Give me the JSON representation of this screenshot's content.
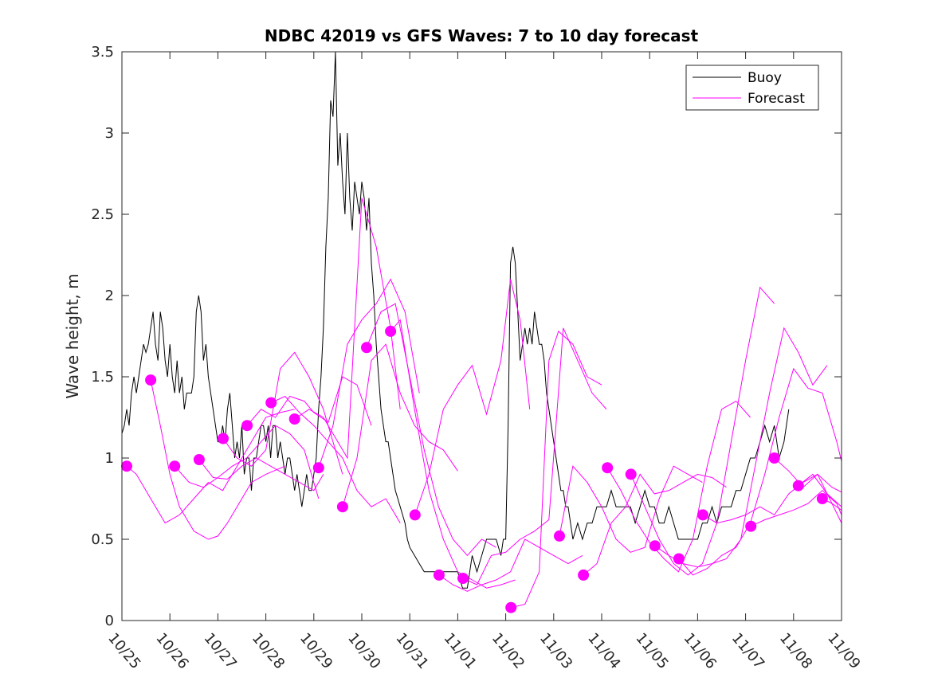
{
  "chart_data": {
    "type": "line",
    "title": "NDBC 42019 vs GFS Waves: 7 to 10 day forecast",
    "xlabel": "",
    "ylabel": "Wave height, m",
    "xlim_days": [
      0,
      15
    ],
    "ylim": [
      0,
      3.5
    ],
    "x_tick_labels": [
      "10/25",
      "10/26",
      "10/27",
      "10/28",
      "10/29",
      "10/30",
      "10/31",
      "11/01",
      "11/02",
      "11/03",
      "11/04",
      "11/05",
      "11/06",
      "11/07",
      "11/08",
      "11/09"
    ],
    "y_ticks": [
      0,
      0.5,
      1,
      1.5,
      2,
      2.5,
      3,
      3.5
    ],
    "y_tick_labels": [
      "0",
      "0.5",
      "1",
      "1.5",
      "2",
      "2.5",
      "3",
      "3.5"
    ],
    "grid": false,
    "legend": {
      "position": "top-right",
      "entries": [
        {
          "label": "Buoy",
          "color": "#000000"
        },
        {
          "label": "Forecast",
          "color": "#ff00ff"
        }
      ]
    },
    "colors": {
      "buoy": "#000000",
      "forecast": "#ff00ff",
      "axis": "#262626"
    },
    "buoy": {
      "name": "Buoy",
      "x_days": [
        0.0,
        0.05,
        0.1,
        0.15,
        0.2,
        0.25,
        0.3,
        0.35,
        0.4,
        0.45,
        0.5,
        0.55,
        0.6,
        0.65,
        0.7,
        0.75,
        0.8,
        0.85,
        0.9,
        0.95,
        1.0,
        1.05,
        1.1,
        1.15,
        1.2,
        1.25,
        1.3,
        1.35,
        1.4,
        1.45,
        1.5,
        1.55,
        1.6,
        1.65,
        1.7,
        1.75,
        1.8,
        1.85,
        1.9,
        1.95,
        2.0,
        2.05,
        2.1,
        2.15,
        2.2,
        2.25,
        2.3,
        2.35,
        2.4,
        2.45,
        2.5,
        2.55,
        2.6,
        2.65,
        2.7,
        2.75,
        2.8,
        2.85,
        2.9,
        2.95,
        3.0,
        3.05,
        3.1,
        3.15,
        3.2,
        3.25,
        3.3,
        3.35,
        3.4,
        3.45,
        3.5,
        3.55,
        3.6,
        3.65,
        3.7,
        3.75,
        3.8,
        3.85,
        3.9,
        3.95,
        4.0,
        4.05,
        4.1,
        4.15,
        4.2,
        4.25,
        4.3,
        4.35,
        4.4,
        4.45,
        4.5,
        4.55,
        4.6,
        4.65,
        4.7,
        4.75,
        4.8,
        4.85,
        4.9,
        4.95,
        5.0,
        5.05,
        5.1,
        5.15,
        5.2,
        5.25,
        5.3,
        5.35,
        5.4,
        5.45,
        5.5,
        5.55,
        5.6,
        5.65,
        5.7,
        5.75,
        5.8,
        5.85,
        5.9,
        5.95,
        6.0,
        6.1,
        6.2,
        6.3,
        6.4,
        6.5,
        6.6,
        6.7,
        6.8,
        6.9,
        7.0,
        7.1,
        7.2,
        7.3,
        7.4,
        7.5,
        7.6,
        7.7,
        7.8,
        7.9,
        7.95,
        8.0,
        8.05,
        8.1,
        8.15,
        8.2,
        8.25,
        8.3,
        8.35,
        8.4,
        8.45,
        8.5,
        8.55,
        8.6,
        8.65,
        8.7,
        8.75,
        8.8,
        8.85,
        8.9,
        8.95,
        9.0,
        9.05,
        9.1,
        9.15,
        9.2,
        9.25,
        9.3,
        9.35,
        9.4,
        9.5,
        9.6,
        9.7,
        9.8,
        9.9,
        10.0,
        10.1,
        10.2,
        10.3,
        10.4,
        10.5,
        10.6,
        10.7,
        10.8,
        10.9,
        11.0,
        11.1,
        11.2,
        11.3,
        11.4,
        11.5,
        11.6,
        11.7,
        11.8,
        11.9,
        12.0,
        12.1,
        12.2,
        12.3,
        12.4,
        12.5,
        12.6,
        12.7,
        12.8,
        12.9,
        13.0,
        13.1,
        13.2,
        13.3,
        13.4,
        13.5,
        13.6,
        13.7,
        13.8,
        13.9,
        14.0,
        14.1,
        14.2,
        14.3
      ],
      "values": [
        1.15,
        1.2,
        1.3,
        1.2,
        1.4,
        1.5,
        1.4,
        1.5,
        1.6,
        1.7,
        1.65,
        1.7,
        1.8,
        1.9,
        1.7,
        1.6,
        1.9,
        1.8,
        1.6,
        1.5,
        1.7,
        1.5,
        1.4,
        1.6,
        1.4,
        1.5,
        1.3,
        1.4,
        1.4,
        1.4,
        1.5,
        1.9,
        2.0,
        1.9,
        1.6,
        1.7,
        1.5,
        1.4,
        1.3,
        1.2,
        1.1,
        1.1,
        1.2,
        1.1,
        1.3,
        1.4,
        1.2,
        1.0,
        1.1,
        1.0,
        1.2,
        0.9,
        1.0,
        1.0,
        0.8,
        1.0,
        1.0,
        1.1,
        1.2,
        1.2,
        1.1,
        1.2,
        1.0,
        1.2,
        1.2,
        1.0,
        1.1,
        1.0,
        0.9,
        1.0,
        1.0,
        0.9,
        0.8,
        0.9,
        0.8,
        0.7,
        0.8,
        0.9,
        0.8,
        0.8,
        0.9,
        1.0,
        1.3,
        1.5,
        1.8,
        2.3,
        2.6,
        3.2,
        3.1,
        3.5,
        2.8,
        3.0,
        2.7,
        2.5,
        3.0,
        2.6,
        2.4,
        2.7,
        2.6,
        2.5,
        2.7,
        2.6,
        2.4,
        2.6,
        2.2,
        2.0,
        1.7,
        1.5,
        1.3,
        1.2,
        1.1,
        1.1,
        1.0,
        0.9,
        0.8,
        0.75,
        0.7,
        0.65,
        0.6,
        0.5,
        0.45,
        0.4,
        0.35,
        0.3,
        0.3,
        0.3,
        0.3,
        0.3,
        0.3,
        0.3,
        0.3,
        0.2,
        0.2,
        0.4,
        0.3,
        0.4,
        0.5,
        0.5,
        0.5,
        0.4,
        0.5,
        0.5,
        1.2,
        2.2,
        2.3,
        2.2,
        1.9,
        1.6,
        1.7,
        1.8,
        1.7,
        1.8,
        1.7,
        1.9,
        1.8,
        1.7,
        1.7,
        1.6,
        1.4,
        1.3,
        1.2,
        1.1,
        1.0,
        0.9,
        0.8,
        0.8,
        0.7,
        0.7,
        0.6,
        0.5,
        0.6,
        0.5,
        0.6,
        0.6,
        0.7,
        0.7,
        0.7,
        0.8,
        0.7,
        0.7,
        0.7,
        0.7,
        0.6,
        0.7,
        0.8,
        0.7,
        0.7,
        0.6,
        0.6,
        0.7,
        0.6,
        0.5,
        0.5,
        0.5,
        0.5,
        0.5,
        0.6,
        0.6,
        0.7,
        0.6,
        0.7,
        0.7,
        0.7,
        0.8,
        0.8,
        0.9,
        1.0,
        1.0,
        1.1,
        1.2,
        1.1,
        1.2,
        1.0,
        1.1,
        1.3
      ]
    },
    "forecast_points": {
      "name": "Forecast",
      "x_days": [
        0.1,
        0.6,
        1.1,
        1.61,
        2.11,
        2.61,
        3.11,
        3.6,
        4.1,
        4.6,
        5.1,
        5.6,
        6.11,
        6.61,
        7.11,
        8.11,
        9.12,
        9.62,
        10.12,
        10.61,
        11.11,
        11.61,
        12.11,
        13.11,
        13.6,
        14.1,
        14.6
      ],
      "values": [
        0.95,
        1.48,
        0.95,
        0.99,
        1.12,
        1.2,
        1.34,
        1.24,
        0.94,
        0.7,
        1.68,
        1.78,
        0.65,
        0.28,
        0.26,
        0.08,
        0.52,
        0.28,
        0.94,
        0.9,
        0.46,
        0.38,
        0.65,
        0.58,
        1.0,
        0.83,
        0.75
      ]
    },
    "forecast_series": [
      {
        "x_days": [
          0.1,
          0.3,
          0.6,
          0.9,
          1.2,
          1.5,
          1.8,
          2.1,
          2.4,
          2.7,
          3.0,
          3.3,
          3.6
        ],
        "values": [
          0.95,
          0.9,
          0.75,
          0.6,
          0.65,
          0.75,
          0.85,
          0.8,
          0.95,
          1.1,
          1.25,
          1.28,
          1.3
        ]
      },
      {
        "x_days": [
          0.6,
          0.8,
          1.0,
          1.2,
          1.5,
          1.8,
          2.0,
          2.2,
          2.5,
          2.7,
          3.0,
          3.4
        ],
        "values": [
          1.48,
          1.2,
          0.9,
          0.7,
          0.55,
          0.5,
          0.52,
          0.6,
          0.75,
          0.85,
          0.9,
          0.95
        ]
      },
      {
        "x_days": [
          1.1,
          1.4,
          1.7,
          2.0,
          2.3,
          2.6,
          2.9,
          3.2,
          3.5,
          3.8,
          4.1
        ],
        "values": [
          0.95,
          0.85,
          0.82,
          0.88,
          0.95,
          1.0,
          1.1,
          1.2,
          1.15,
          1.05,
          0.75
        ]
      },
      {
        "x_days": [
          1.61,
          1.9,
          2.2,
          2.5,
          2.8,
          3.1,
          3.4,
          3.7,
          4.0,
          4.2
        ],
        "values": [
          0.99,
          0.88,
          0.87,
          0.95,
          1.0,
          0.95,
          0.9,
          0.85,
          0.8,
          0.9
        ]
      },
      {
        "x_days": [
          2.11,
          2.4,
          2.7,
          3.0,
          3.3,
          3.6,
          3.9,
          4.2,
          4.5,
          4.6
        ],
        "values": [
          1.12,
          1.0,
          0.95,
          1.05,
          1.55,
          1.65,
          1.5,
          1.3,
          1.0,
          0.9
        ]
      },
      {
        "x_days": [
          2.61,
          2.9,
          3.2,
          3.5,
          3.8,
          4.0,
          4.3,
          4.6,
          4.9,
          5.2
        ],
        "values": [
          1.2,
          1.3,
          1.25,
          1.38,
          1.35,
          1.28,
          1.22,
          1.5,
          1.45,
          1.2
        ]
      },
      {
        "x_days": [
          3.11,
          3.4,
          3.7,
          4.0,
          4.3,
          4.6,
          4.9,
          5.2,
          5.5,
          5.8
        ],
        "values": [
          1.34,
          1.38,
          1.28,
          1.2,
          1.1,
          1.0,
          0.8,
          0.7,
          0.75,
          0.6
        ]
      },
      {
        "x_days": [
          3.6,
          3.9,
          4.2,
          4.5,
          4.7,
          5.0,
          5.3,
          5.6,
          5.8
        ],
        "values": [
          1.24,
          1.3,
          1.25,
          1.1,
          1.0,
          2.6,
          2.3,
          1.8,
          1.3
        ]
      },
      {
        "x_days": [
          4.1,
          4.4,
          4.7,
          5.0,
          5.3,
          5.6,
          5.9,
          6.2
        ],
        "values": [
          0.94,
          1.2,
          1.7,
          1.85,
          1.95,
          2.1,
          1.9,
          1.4
        ]
      },
      {
        "x_days": [
          4.6,
          4.9,
          5.2,
          5.5,
          5.8,
          6.1,
          6.4,
          6.7,
          7.0
        ],
        "values": [
          0.7,
          1.0,
          1.6,
          1.7,
          1.4,
          1.2,
          1.1,
          1.05,
          0.92
        ]
      },
      {
        "x_days": [
          5.1,
          5.4,
          5.7,
          6.0,
          6.3,
          6.6,
          6.9,
          7.2,
          7.5,
          7.8
        ],
        "values": [
          1.68,
          1.9,
          1.95,
          1.5,
          1.05,
          0.7,
          0.5,
          0.4,
          0.5,
          0.45
        ]
      },
      {
        "x_days": [
          5.6,
          5.8,
          6.1,
          6.4,
          6.7,
          7.0,
          7.3,
          7.6,
          7.9,
          8.2
        ],
        "values": [
          1.78,
          1.85,
          1.3,
          0.8,
          0.5,
          0.3,
          0.25,
          0.2,
          0.22,
          0.25
        ]
      },
      {
        "x_days": [
          6.11,
          6.4,
          6.7,
          7.0,
          7.3,
          7.6,
          7.9,
          8.1,
          8.3,
          8.5
        ],
        "values": [
          0.65,
          0.9,
          1.3,
          1.45,
          1.57,
          1.27,
          1.6,
          2.1,
          1.85,
          1.3
        ]
      },
      {
        "x_days": [
          6.61,
          6.9,
          7.2,
          7.5,
          7.8,
          8.1,
          8.4,
          8.7,
          9.0,
          9.3,
          9.6
        ],
        "values": [
          0.28,
          0.22,
          0.18,
          0.22,
          0.25,
          0.3,
          0.5,
          0.45,
          0.4,
          0.35,
          0.4
        ]
      },
      {
        "x_days": [
          7.11,
          7.4,
          7.7,
          8.0,
          8.3,
          8.6,
          8.9,
          9.2,
          9.5,
          9.8,
          10.1
        ],
        "values": [
          0.26,
          0.22,
          0.4,
          0.42,
          0.5,
          0.55,
          0.62,
          1.8,
          1.6,
          1.4,
          1.3
        ]
      },
      {
        "x_days": [
          8.11,
          8.4,
          8.7,
          8.9,
          9.1,
          9.4,
          9.7,
          10.0
        ],
        "values": [
          0.08,
          0.1,
          0.3,
          1.6,
          1.78,
          1.7,
          1.5,
          1.45
        ]
      },
      {
        "x_days": [
          9.12,
          9.4,
          9.7,
          10.0,
          10.3,
          10.6,
          10.9,
          11.2,
          11.5,
          11.8,
          12.1
        ],
        "values": [
          0.52,
          0.95,
          0.85,
          0.7,
          0.5,
          0.42,
          0.45,
          0.75,
          0.95,
          0.9,
          0.85
        ]
      },
      {
        "x_days": [
          9.62,
          9.9,
          10.2,
          10.5,
          10.8,
          11.1,
          11.4,
          11.7,
          12.0,
          12.3,
          12.6
        ],
        "values": [
          0.28,
          0.35,
          0.6,
          0.7,
          0.9,
          0.78,
          0.8,
          0.85,
          0.9,
          0.88,
          0.82
        ]
      },
      {
        "x_days": [
          10.12,
          10.4,
          10.7,
          11.0,
          11.3,
          11.6,
          11.9,
          12.2,
          12.5,
          12.8,
          13.1
        ],
        "values": [
          0.94,
          0.8,
          0.62,
          0.48,
          0.38,
          0.3,
          0.5,
          0.95,
          1.3,
          1.35,
          1.25
        ]
      },
      {
        "x_days": [
          10.61,
          10.9,
          11.2,
          11.5,
          11.8,
          12.1,
          12.4,
          12.7,
          13.0,
          13.3,
          13.6
        ],
        "values": [
          0.9,
          0.7,
          0.5,
          0.35,
          0.28,
          0.35,
          0.6,
          1.1,
          1.6,
          2.05,
          1.95
        ]
      },
      {
        "x_days": [
          11.11,
          11.4,
          11.7,
          12.0,
          12.3,
          12.6,
          12.9,
          13.2,
          13.5,
          13.8,
          14.1,
          14.4,
          14.7
        ],
        "values": [
          0.46,
          0.4,
          0.35,
          0.33,
          0.35,
          0.38,
          0.5,
          0.95,
          1.4,
          1.8,
          1.65,
          1.45,
          1.57
        ]
      },
      {
        "x_days": [
          11.61,
          11.9,
          12.2,
          12.5,
          12.8,
          13.1,
          13.4,
          13.7,
          14.0,
          14.3,
          14.6,
          14.9,
          15.0
        ],
        "values": [
          0.38,
          0.28,
          0.32,
          0.4,
          0.45,
          0.6,
          0.9,
          1.25,
          1.55,
          1.43,
          1.4,
          1.1,
          0.98
        ]
      },
      {
        "x_days": [
          12.11,
          12.4,
          12.7,
          13.0,
          13.3,
          13.6,
          13.9,
          14.2,
          14.5,
          14.8,
          15.0
        ],
        "values": [
          0.65,
          0.6,
          0.62,
          0.65,
          0.7,
          0.65,
          0.78,
          0.85,
          0.9,
          0.82,
          0.79
        ]
      },
      {
        "x_days": [
          13.11,
          13.4,
          13.7,
          14.0,
          14.3,
          14.6,
          14.9,
          15.0
        ],
        "values": [
          0.58,
          0.62,
          0.65,
          0.68,
          0.72,
          0.8,
          0.72,
          0.65
        ]
      },
      {
        "x_days": [
          13.6,
          13.9,
          14.2,
          14.5,
          14.8,
          15.0
        ],
        "values": [
          1.0,
          0.92,
          0.82,
          0.9,
          0.72,
          0.6
        ]
      },
      {
        "x_days": [
          14.1,
          14.4,
          14.7,
          15.0
        ],
        "values": [
          0.83,
          0.9,
          0.78,
          0.7
        ]
      },
      {
        "x_days": [
          14.6,
          14.8,
          15.0
        ],
        "values": [
          0.75,
          0.72,
          0.68
        ]
      }
    ]
  }
}
